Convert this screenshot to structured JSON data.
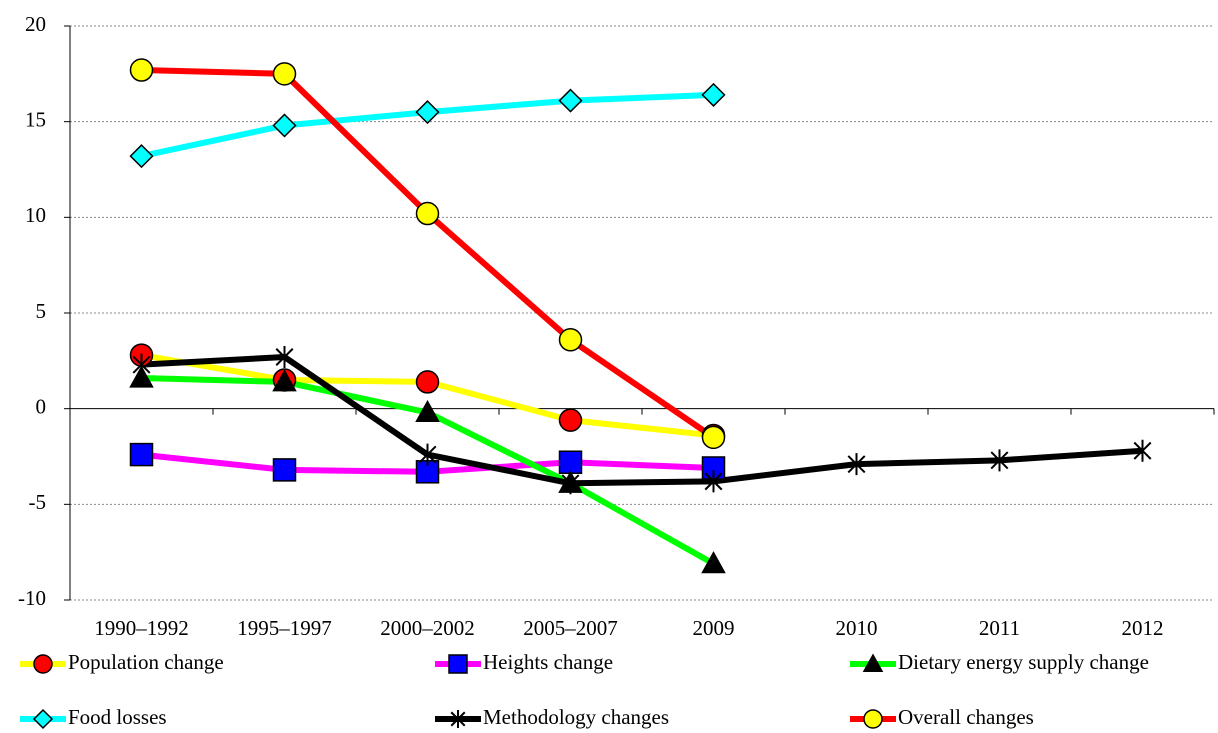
{
  "chart_data": {
    "type": "line",
    "categories": [
      "1990–1992",
      "1995–1997",
      "2000–2002",
      "2005–2007",
      "2009",
      "2010",
      "2011",
      "2012"
    ],
    "series": [
      {
        "name": "Population change",
        "color": "#ffff00",
        "marker": "circle",
        "marker_color": "#ff0000",
        "values": [
          2.8,
          1.5,
          1.4,
          -0.6,
          -1.4,
          null,
          null,
          null
        ]
      },
      {
        "name": "Heights change",
        "color": "#ff00ff",
        "marker": "square",
        "marker_color": "#0000ff",
        "values": [
          -2.4,
          -3.2,
          -3.3,
          -2.8,
          -3.1,
          null,
          null,
          null
        ]
      },
      {
        "name": "Dietary energy supply change",
        "color": "#00ff00",
        "marker": "triangle",
        "marker_color": "#000000",
        "values": [
          1.6,
          1.4,
          -0.2,
          -3.9,
          -8.1,
          null,
          null,
          null
        ]
      },
      {
        "name": "Food losses",
        "color": "#00ffff",
        "marker": "diamond",
        "marker_color": "#00ffff",
        "values": [
          13.2,
          14.8,
          15.5,
          16.1,
          16.4,
          null,
          null,
          null
        ]
      },
      {
        "name": "Methodology changes",
        "color": "#000000",
        "marker": "asterisk",
        "marker_color": "#000000",
        "values": [
          2.3,
          2.7,
          -2.4,
          -3.9,
          -3.8,
          -2.9,
          -2.7,
          -2.2
        ]
      },
      {
        "name": "Overall changes",
        "color": "#ff0000",
        "marker": "circle",
        "marker_color": "#ffff00",
        "values": [
          17.7,
          17.5,
          10.2,
          3.6,
          -1.5,
          null,
          null,
          null
        ]
      }
    ],
    "ylim": [
      -10,
      20
    ],
    "yticks": [
      -10,
      {
        "value": -5,
        "label": "-5"
      },
      0,
      5,
      10,
      15,
      20
    ],
    "grid": true
  }
}
